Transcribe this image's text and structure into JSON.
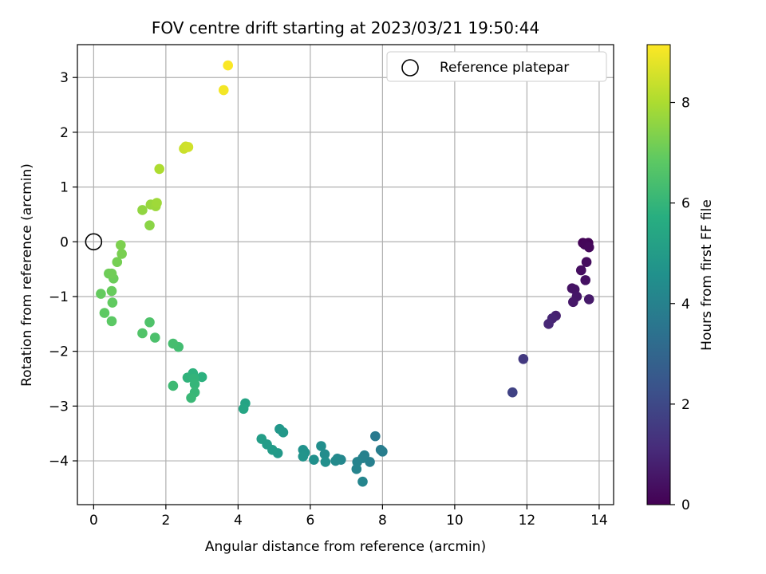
{
  "chart_data": {
    "type": "scatter",
    "title": "FOV centre drift starting at 2023/03/21 19:50:44",
    "xlabel": "Angular distance from reference (arcmin)",
    "ylabel": "Rotation from reference (arcmin)",
    "xlim": [
      -0.45,
      14.4
    ],
    "ylim": [
      -4.8,
      3.6
    ],
    "xticks": [
      0,
      2,
      4,
      6,
      8,
      10,
      12,
      14
    ],
    "yticks": [
      -4,
      -3,
      -2,
      -1,
      0,
      1,
      2,
      3
    ],
    "grid": true,
    "legend": {
      "location": "top-right",
      "entries": [
        "Reference platepar"
      ]
    },
    "colorbar": {
      "label": "Hours from first FF file",
      "min": 0,
      "max": 9.15,
      "ticks": [
        0,
        2,
        4,
        6,
        8
      ],
      "colormap": "viridis"
    },
    "reference_point": {
      "x": 0,
      "y": 0
    },
    "points": [
      {
        "x": 13.55,
        "y": -0.02,
        "h": 0.05
      },
      {
        "x": 13.7,
        "y": -0.02,
        "h": 0.1
      },
      {
        "x": 13.6,
        "y": -0.05,
        "h": 0.15
      },
      {
        "x": 13.72,
        "y": -0.1,
        "h": 0.2
      },
      {
        "x": 13.65,
        "y": -0.37,
        "h": 0.3
      },
      {
        "x": 13.5,
        "y": -0.52,
        "h": 0.35
      },
      {
        "x": 13.62,
        "y": -0.7,
        "h": 0.4
      },
      {
        "x": 13.25,
        "y": -0.85,
        "h": 0.45
      },
      {
        "x": 13.32,
        "y": -0.87,
        "h": 0.5
      },
      {
        "x": 13.38,
        "y": -1.0,
        "h": 0.55
      },
      {
        "x": 13.28,
        "y": -1.1,
        "h": 0.6
      },
      {
        "x": 13.72,
        "y": -1.05,
        "h": 0.65
      },
      {
        "x": 12.8,
        "y": -1.35,
        "h": 0.8
      },
      {
        "x": 12.7,
        "y": -1.4,
        "h": 0.9
      },
      {
        "x": 12.6,
        "y": -1.5,
        "h": 1.0
      },
      {
        "x": 11.9,
        "y": -2.14,
        "h": 1.5
      },
      {
        "x": 11.6,
        "y": -2.75,
        "h": 1.8
      },
      {
        "x": 7.8,
        "y": -3.55,
        "h": 3.7
      },
      {
        "x": 7.95,
        "y": -3.8,
        "h": 3.8
      },
      {
        "x": 8.0,
        "y": -3.83,
        "h": 3.85
      },
      {
        "x": 7.65,
        "y": -4.02,
        "h": 3.9
      },
      {
        "x": 7.5,
        "y": -3.9,
        "h": 3.95
      },
      {
        "x": 7.45,
        "y": -3.95,
        "h": 4.0
      },
      {
        "x": 7.3,
        "y": -4.02,
        "h": 4.05
      },
      {
        "x": 7.28,
        "y": -4.15,
        "h": 4.1
      },
      {
        "x": 7.45,
        "y": -4.38,
        "h": 4.15
      },
      {
        "x": 6.85,
        "y": -3.98,
        "h": 4.2
      },
      {
        "x": 6.75,
        "y": -3.96,
        "h": 4.25
      },
      {
        "x": 6.7,
        "y": -4.0,
        "h": 4.3
      },
      {
        "x": 6.4,
        "y": -3.88,
        "h": 4.4
      },
      {
        "x": 6.3,
        "y": -3.73,
        "h": 4.45
      },
      {
        "x": 6.42,
        "y": -4.02,
        "h": 4.5
      },
      {
        "x": 6.1,
        "y": -3.98,
        "h": 4.55
      },
      {
        "x": 5.8,
        "y": -3.8,
        "h": 4.6
      },
      {
        "x": 5.85,
        "y": -3.85,
        "h": 4.65
      },
      {
        "x": 5.8,
        "y": -3.92,
        "h": 4.7
      },
      {
        "x": 5.15,
        "y": -3.42,
        "h": 4.8
      },
      {
        "x": 5.25,
        "y": -3.48,
        "h": 4.85
      },
      {
        "x": 5.1,
        "y": -3.86,
        "h": 4.9
      },
      {
        "x": 4.95,
        "y": -3.8,
        "h": 4.95
      },
      {
        "x": 4.8,
        "y": -3.7,
        "h": 5.0
      },
      {
        "x": 4.65,
        "y": -3.6,
        "h": 5.05
      },
      {
        "x": 4.2,
        "y": -2.95,
        "h": 5.3
      },
      {
        "x": 4.15,
        "y": -3.05,
        "h": 5.35
      },
      {
        "x": 3.0,
        "y": -2.47,
        "h": 5.8
      },
      {
        "x": 2.75,
        "y": -2.4,
        "h": 5.85
      },
      {
        "x": 2.6,
        "y": -2.48,
        "h": 5.9
      },
      {
        "x": 2.78,
        "y": -2.5,
        "h": 5.95
      },
      {
        "x": 2.8,
        "y": -2.6,
        "h": 6.0
      },
      {
        "x": 2.8,
        "y": -2.75,
        "h": 6.05
      },
      {
        "x": 2.7,
        "y": -2.85,
        "h": 6.1
      },
      {
        "x": 2.2,
        "y": -2.63,
        "h": 6.2
      },
      {
        "x": 2.35,
        "y": -1.92,
        "h": 6.3
      },
      {
        "x": 2.2,
        "y": -1.86,
        "h": 6.35
      },
      {
        "x": 1.7,
        "y": -1.75,
        "h": 6.5
      },
      {
        "x": 1.55,
        "y": -1.47,
        "h": 6.55
      },
      {
        "x": 1.35,
        "y": -1.67,
        "h": 6.6
      },
      {
        "x": 0.5,
        "y": -1.45,
        "h": 6.8
      },
      {
        "x": 0.3,
        "y": -1.3,
        "h": 6.85
      },
      {
        "x": 0.52,
        "y": -1.11,
        "h": 6.9
      },
      {
        "x": 0.2,
        "y": -0.95,
        "h": 6.95
      },
      {
        "x": 0.5,
        "y": -0.9,
        "h": 7.0
      },
      {
        "x": 0.55,
        "y": -0.67,
        "h": 7.05
      },
      {
        "x": 0.42,
        "y": -0.58,
        "h": 7.1
      },
      {
        "x": 0.5,
        "y": -0.58,
        "h": 7.12
      },
      {
        "x": 0.65,
        "y": -0.37,
        "h": 7.2
      },
      {
        "x": 0.78,
        "y": -0.22,
        "h": 7.25
      },
      {
        "x": 0.75,
        "y": -0.06,
        "h": 7.3
      },
      {
        "x": 1.55,
        "y": 0.3,
        "h": 7.5
      },
      {
        "x": 1.35,
        "y": 0.58,
        "h": 7.6
      },
      {
        "x": 1.58,
        "y": 0.68,
        "h": 7.7
      },
      {
        "x": 1.72,
        "y": 0.65,
        "h": 7.75
      },
      {
        "x": 1.75,
        "y": 0.71,
        "h": 7.8
      },
      {
        "x": 1.82,
        "y": 1.33,
        "h": 8.0
      },
      {
        "x": 2.5,
        "y": 1.7,
        "h": 8.4
      },
      {
        "x": 2.55,
        "y": 1.74,
        "h": 8.45
      },
      {
        "x": 2.62,
        "y": 1.73,
        "h": 8.5
      },
      {
        "x": 3.6,
        "y": 2.77,
        "h": 9.0
      },
      {
        "x": 3.72,
        "y": 3.22,
        "h": 9.1
      }
    ]
  }
}
